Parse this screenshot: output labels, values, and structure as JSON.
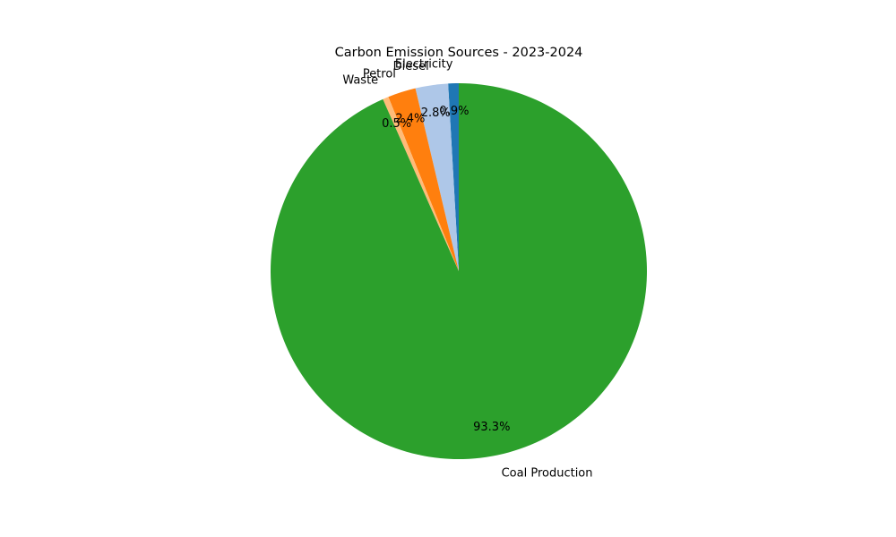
{
  "chart_data": {
    "type": "pie",
    "title": "Carbon Emission Sources - 2023-2024",
    "start_angle_deg": 90,
    "direction": "counterclockwise",
    "slices": [
      {
        "label": "Electricity",
        "percent": 0.9,
        "percent_label": "0.9%",
        "color": "#1f77b4"
      },
      {
        "label": "Diesel",
        "percent": 2.8,
        "percent_label": "2.8%",
        "color": "#aec7e8"
      },
      {
        "label": "Petrol",
        "percent": 2.4,
        "percent_label": "2.4%",
        "color": "#ff7f0e"
      },
      {
        "label": "Waste",
        "percent": 0.5,
        "percent_label": "0.5%",
        "color": "#ffbb78"
      },
      {
        "label": "Coal Production",
        "percent": 93.3,
        "percent_label": "93.3%",
        "color": "#2ca02c"
      }
    ],
    "legend": "none",
    "grid": false
  }
}
